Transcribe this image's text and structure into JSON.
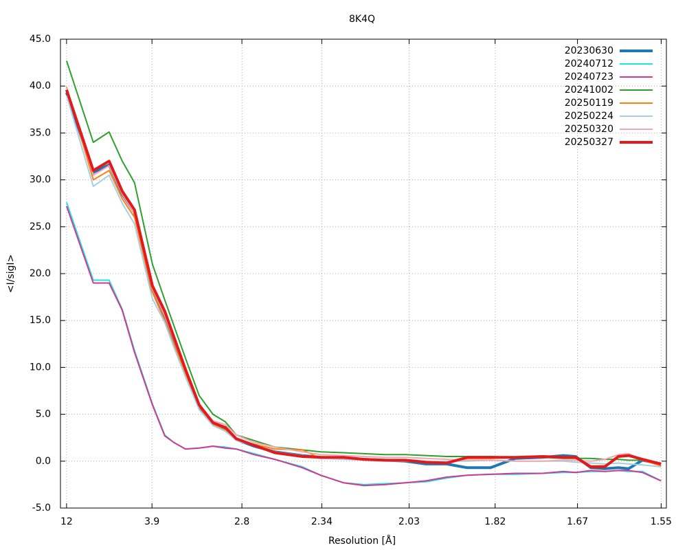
{
  "chart_data": {
    "type": "line",
    "title": "8K4Q",
    "x_label": "Resolution [Å]",
    "y_label": "<I/sigI>",
    "xlim": [
      0.0027,
      0.4198
    ],
    "ylim": [
      -5,
      45
    ],
    "xticks": [
      {
        "value": 0.0069,
        "label": "12"
      },
      {
        "value": 0.0657,
        "label": "3.9"
      },
      {
        "value": 0.1276,
        "label": "2.8"
      },
      {
        "value": 0.1826,
        "label": "2.34"
      },
      {
        "value": 0.2427,
        "label": "2.03"
      },
      {
        "value": 0.3019,
        "label": "1.82"
      },
      {
        "value": 0.3586,
        "label": "1.67"
      },
      {
        "value": 0.4162,
        "label": "1.55"
      }
    ],
    "yticks": [
      {
        "value": -5,
        "label": "-5.0"
      },
      {
        "value": 0,
        "label": "0.0"
      },
      {
        "value": 5,
        "label": "5.0"
      },
      {
        "value": 10,
        "label": "10.0"
      },
      {
        "value": 15,
        "label": "15.0"
      },
      {
        "value": 20,
        "label": "20.0"
      },
      {
        "value": 25,
        "label": "25.0"
      },
      {
        "value": 30,
        "label": "30.0"
      },
      {
        "value": 35,
        "label": "35.0"
      },
      {
        "value": 40,
        "label": "40.0"
      },
      {
        "value": 45,
        "label": "45.0"
      }
    ],
    "grid": true,
    "legend": "top-right",
    "x": [
      0.0069,
      0.0253,
      0.0362,
      0.0452,
      0.0537,
      0.066,
      0.0745,
      0.0807,
      0.0887,
      0.0982,
      0.1077,
      0.1162,
      0.1237,
      0.136,
      0.1502,
      0.1692,
      0.1819,
      0.1975,
      0.2117,
      0.2259,
      0.2401,
      0.2543,
      0.2685,
      0.2827,
      0.2988,
      0.3158,
      0.3347,
      0.3489,
      0.3574,
      0.3678,
      0.3773,
      0.3868,
      0.3938,
      0.4033,
      0.4161
    ],
    "series": [
      {
        "name": "20230630",
        "color": "#1f77b4",
        "line_width": 4,
        "values": [
          39.3,
          30.8,
          31.6,
          28.5,
          26.5,
          18.2,
          15.5,
          13,
          9.5,
          5.8,
          4.0,
          3.4,
          2.3,
          1.6,
          1.0,
          0.6,
          0.4,
          0.3,
          0.2,
          0.1,
          0.0,
          -0.3,
          -0.3,
          -0.7,
          -0.7,
          0.3,
          0.4,
          0.6,
          0.5,
          -0.7,
          -0.8,
          -0.7,
          -0.8,
          0.1,
          -0.3
        ]
      },
      {
        "name": "20240712",
        "color": "#1de3e3",
        "line_width": 2,
        "values": [
          27.6,
          19.3,
          19.3,
          16.2,
          11.8,
          6.1,
          2.8,
          2.0,
          1.3,
          1.4,
          1.6,
          1.5,
          1.3,
          0.8,
          0.2,
          -0.6,
          -1.5,
          -2.3,
          -2.5,
          -2.4,
          -2.3,
          -2.2,
          -1.8,
          -1.5,
          -1.4,
          -1.4,
          -1.3,
          -1.2,
          -1.2,
          -1.1,
          -1.1,
          -1.0,
          -1.1,
          -1.1,
          -2.1
        ]
      },
      {
        "name": "20240723",
        "color": "#d03a8f",
        "line_width": 2,
        "values": [
          27.2,
          19.0,
          19.0,
          16.1,
          11.6,
          6.0,
          2.7,
          2.0,
          1.3,
          1.4,
          1.6,
          1.4,
          1.3,
          0.7,
          0.2,
          -0.7,
          -1.5,
          -2.3,
          -2.6,
          -2.5,
          -2.3,
          -2.1,
          -1.7,
          -1.5,
          -1.4,
          -1.3,
          -1.3,
          -1.1,
          -1.2,
          -1.0,
          -1.1,
          -1.0,
          -1.0,
          -1.2,
          -2.1
        ]
      },
      {
        "name": "20241002",
        "color": "#2ca02c",
        "line_width": 2,
        "values": [
          42.7,
          34.0,
          35.1,
          32.0,
          29.7,
          21.0,
          17.2,
          14.5,
          11,
          7,
          5,
          4.2,
          2.8,
          2.2,
          1.5,
          1.2,
          1.0,
          0.9,
          0.8,
          0.7,
          0.7,
          0.6,
          0.5,
          0.5,
          0.5,
          0.4,
          0.4,
          0.3,
          0.3,
          0.3,
          0.2,
          0.2,
          0.1,
          0.1,
          -0.2
        ]
      },
      {
        "name": "20250119",
        "color": "#ff7f0e",
        "line_width": 2,
        "values": [
          39.9,
          30.0,
          31.0,
          28.0,
          26.0,
          18.0,
          15.0,
          12.5,
          9.3,
          5.8,
          3.9,
          3.3,
          2.3,
          1.8,
          1.3,
          1.2,
          0.3,
          0.3,
          0.2,
          0.1,
          0.1,
          -0.1,
          -0.2,
          0.3,
          0.3,
          0.4,
          0.4,
          0.4,
          0.3,
          -0.5,
          -0.5,
          0.5,
          0.6,
          0.1,
          -0.5
        ]
      },
      {
        "name": "20250224",
        "color": "#a6cee3",
        "line_width": 2,
        "values": [
          39.0,
          29.3,
          30.5,
          27.5,
          25.3,
          17.3,
          14.8,
          12.2,
          9,
          5.5,
          3.8,
          3.2,
          2.2,
          1.7,
          1.0,
          0.6,
          0.3,
          0.2,
          0.1,
          0.0,
          0.0,
          -0.1,
          0.0,
          0.0,
          0.1,
          0.0,
          0.0,
          0.0,
          -0.1,
          -0.2,
          -0.3,
          -0.2,
          -0.3,
          -0.4,
          -0.6
        ]
      },
      {
        "name": "20250320",
        "color": "#f4a6ae",
        "line_width": 2,
        "values": [
          39.8,
          30.5,
          31.5,
          28.5,
          26.4,
          18.4,
          15.5,
          13,
          9.6,
          6.0,
          4.3,
          3.9,
          2.8,
          2.0,
          1.5,
          1.0,
          0.7,
          0.6,
          0.5,
          0.4,
          0.4,
          0.3,
          0.2,
          0.1,
          0.1,
          0.0,
          0.0,
          0.1,
          0.1,
          0.0,
          0.2,
          0.7,
          0.8,
          0.2,
          -0.2
        ]
      },
      {
        "name": "20250327",
        "color": "#e31a1c",
        "line_width": 4,
        "values": [
          39.6,
          31.0,
          32.0,
          28.8,
          26.8,
          18.7,
          16.0,
          13.3,
          9.8,
          6.0,
          4.1,
          3.6,
          2.4,
          1.7,
          0.9,
          0.5,
          0.4,
          0.4,
          0.2,
          0.1,
          0.1,
          -0.1,
          -0.2,
          0.4,
          0.4,
          0.4,
          0.5,
          0.4,
          0.4,
          -0.6,
          -0.6,
          0.5,
          0.6,
          0.2,
          -0.3
        ]
      }
    ]
  }
}
